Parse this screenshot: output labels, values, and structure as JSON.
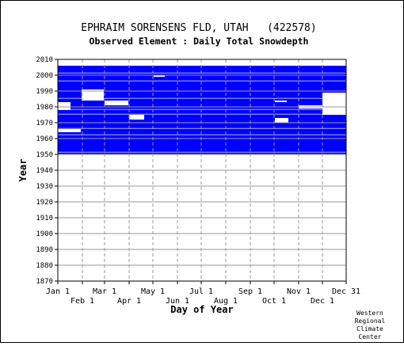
{
  "chart_data": {
    "type": "heatmap",
    "title": "EPHRAIM SORENSENS FLD, UTAH   (422578)",
    "subtitle": "Observed Element : Daily Total Snowdepth",
    "xlabel": "Day of Year",
    "ylabel": "Year",
    "xlim": [
      1,
      365
    ],
    "ylim": [
      1870,
      2010
    ],
    "y_ticks": [
      1870,
      1880,
      1890,
      1900,
      1910,
      1920,
      1930,
      1940,
      1950,
      1960,
      1970,
      1980,
      1990,
      2000,
      2010
    ],
    "x_ticks_top": [
      {
        "label": "Jan 1",
        "day": 1
      },
      {
        "label": "Mar 1",
        "day": 60
      },
      {
        "label": "May 1",
        "day": 121
      },
      {
        "label": "Jul 1",
        "day": 182
      },
      {
        "label": "Sep 1",
        "day": 244
      },
      {
        "label": "Nov 1",
        "day": 305
      },
      {
        "label": "Dec 31",
        "day": 365
      }
    ],
    "x_ticks_bottom": [
      {
        "label": "Feb 1",
        "day": 32
      },
      {
        "label": "Apr 1",
        "day": 91
      },
      {
        "label": "Jun 1",
        "day": 152
      },
      {
        "label": "Aug 1",
        "day": 213
      },
      {
        "label": "Oct 1",
        "day": 274
      },
      {
        "label": "Dec 1",
        "day": 335
      }
    ],
    "data_year_range": [
      1950,
      2005
    ],
    "observed_color": "#0000ff",
    "grid": true,
    "gap_years": [
      1951,
      1962,
      1966,
      1975,
      1978,
      1985,
      1996,
      2001
    ],
    "gap_spans": [
      {
        "day_from": 1,
        "day_to": 17,
        "years": [
          1978,
          1983
        ]
      },
      {
        "day_from": 60,
        "day_to": 90,
        "years": [
          1981,
          1984
        ]
      },
      {
        "day_from": 91,
        "day_to": 110,
        "years": [
          1972,
          1975
        ]
      },
      {
        "day_from": 122,
        "day_to": 136,
        "years": [
          1999,
          2000
        ]
      },
      {
        "day_from": 275,
        "day_to": 290,
        "years": [
          1983,
          1984
        ]
      },
      {
        "day_from": 275,
        "day_to": 292,
        "years": [
          1970,
          1973
        ]
      },
      {
        "day_from": 305,
        "day_to": 335,
        "years": [
          1979,
          1981
        ]
      },
      {
        "day_from": 335,
        "day_to": 365,
        "years": [
          1975,
          1989
        ]
      },
      {
        "day_from": 31,
        "day_to": 59,
        "years": [
          1984,
          1991
        ]
      },
      {
        "day_from": 1,
        "day_to": 30,
        "years": [
          1964,
          1966
        ]
      }
    ]
  },
  "credit_lines": [
    "Western",
    "Regional",
    "Climate",
    "Center"
  ]
}
